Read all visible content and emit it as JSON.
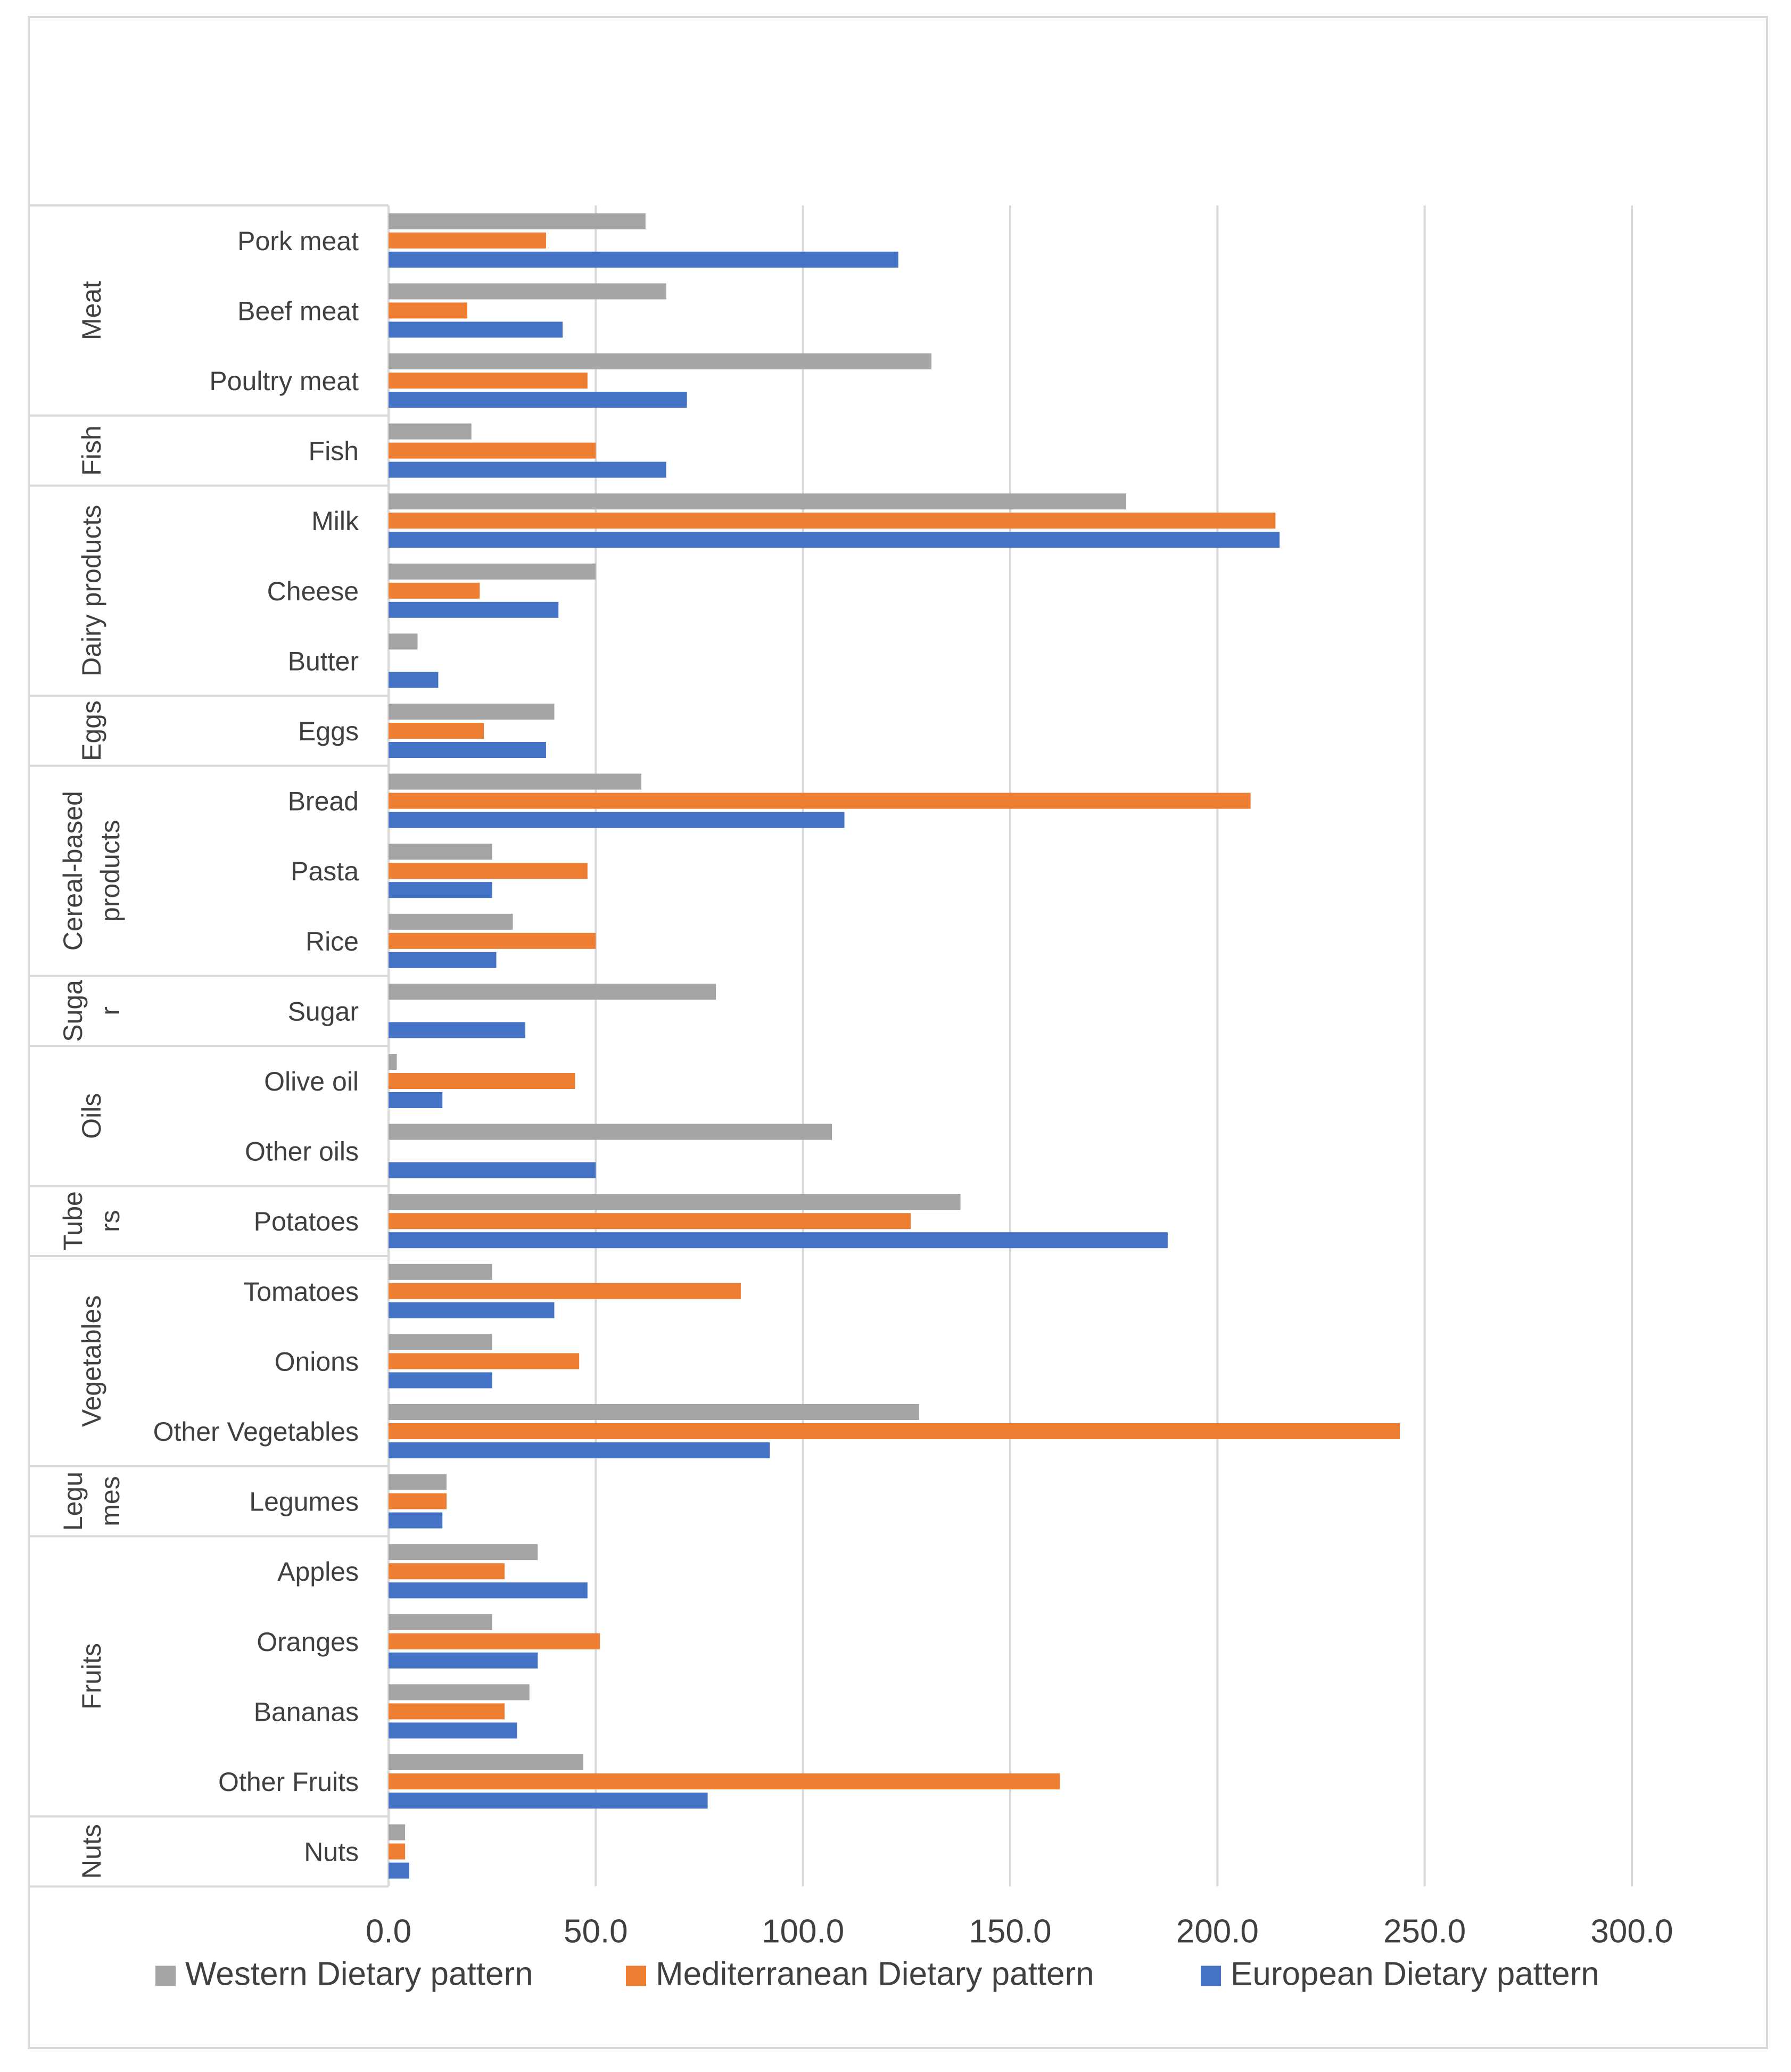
{
  "chart_data": {
    "type": "bar",
    "orientation": "horizontal",
    "title": "",
    "xlabel": "",
    "ylabel": "",
    "xlim": [
      0,
      300
    ],
    "xticks": [
      "0.0",
      "50.0",
      "100.0",
      "150.0",
      "200.0",
      "250.0",
      "300.0"
    ],
    "grid": true,
    "legend_position": "bottom",
    "groups": [
      {
        "name": "Meat",
        "label_lines": [
          "Meat"
        ],
        "categories": [
          "Pork meat",
          "Beef meat",
          "Poultry meat"
        ]
      },
      {
        "name": "Fish",
        "label_lines": [
          "Fish"
        ],
        "categories": [
          "Fish"
        ]
      },
      {
        "name": "Dairy products",
        "label_lines": [
          "Dairy products"
        ],
        "categories": [
          "Milk",
          "Cheese",
          "Butter"
        ]
      },
      {
        "name": "Eggs",
        "label_lines": [
          "Eggs"
        ],
        "categories": [
          "Eggs"
        ]
      },
      {
        "name": "Cereal-based products",
        "label_lines": [
          "Cereal-based",
          "products"
        ],
        "categories": [
          "Bread",
          "Pasta",
          "Rice"
        ]
      },
      {
        "name": "Sugar",
        "label_lines": [
          "Suga",
          "r"
        ],
        "categories": [
          "Sugar"
        ]
      },
      {
        "name": "Oils",
        "label_lines": [
          "Oils"
        ],
        "categories": [
          "Olive oil",
          "Other oils"
        ]
      },
      {
        "name": "Tubers",
        "label_lines": [
          "Tube",
          "rs"
        ],
        "categories": [
          "Potatoes"
        ]
      },
      {
        "name": "Vegetables",
        "label_lines": [
          "Vegetables"
        ],
        "categories": [
          "Tomatoes",
          "Onions",
          "Other Vegetables"
        ]
      },
      {
        "name": "Legumes",
        "label_lines": [
          "Legu",
          "mes"
        ],
        "categories": [
          "Legumes"
        ]
      },
      {
        "name": "Fruits",
        "label_lines": [
          "Fruits"
        ],
        "categories": [
          "Apples",
          "Oranges",
          "Bananas",
          "Other Fruits"
        ]
      },
      {
        "name": "Nuts",
        "label_lines": [
          "Nuts"
        ],
        "categories": [
          "Nuts"
        ]
      }
    ],
    "series": [
      {
        "name": "Western Dietary pattern",
        "color": "#a5a5a5",
        "values": [
          62,
          67,
          131,
          20,
          178,
          50,
          7,
          40,
          61,
          25,
          30,
          79,
          2,
          107,
          138,
          25,
          25,
          128,
          14,
          36,
          25,
          34,
          47,
          4
        ]
      },
      {
        "name": "Mediterranean Dietary pattern",
        "color": "#ed7d31",
        "values": [
          38,
          19,
          48,
          50,
          214,
          22,
          0,
          23,
          208,
          48,
          50,
          0,
          45,
          0,
          126,
          85,
          46,
          244,
          14,
          28,
          51,
          28,
          162,
          4
        ]
      },
      {
        "name": "European Dietary pattern",
        "color": "#4472c4",
        "values": [
          123,
          42,
          72,
          67,
          215,
          41,
          12,
          38,
          110,
          25,
          26,
          33,
          13,
          50,
          188,
          40,
          25,
          92,
          13,
          48,
          36,
          31,
          77,
          5
        ]
      }
    ]
  }
}
